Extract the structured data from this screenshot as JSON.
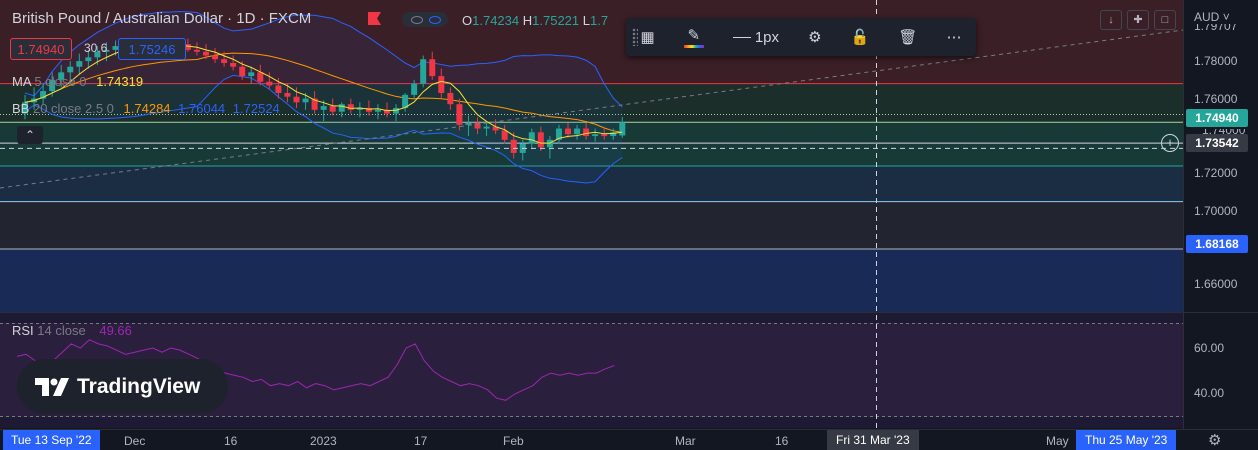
{
  "header": {
    "title": "British Pound / Australian Dollar · 1D · FXCM",
    "ohlc": [
      {
        "label": "O",
        "value": "1.74234"
      },
      {
        "label": "H",
        "value": "1.75221"
      },
      {
        "label": "L",
        "value": "1.7"
      }
    ]
  },
  "trade": {
    "sell_price": "1.74940",
    "spread": "30.6",
    "buy_price": "1.75246"
  },
  "indicators": {
    "ma": {
      "name": "MA",
      "params": "5 close 0",
      "value": "1.74319"
    },
    "bb": {
      "name": "BB",
      "params": "20 close 2.5 0",
      "basis": "1.74284",
      "upper": "1.76044",
      "lower": "1.72524"
    },
    "rsi": {
      "name": "RSI",
      "params": "14 close",
      "value": "49.66"
    }
  },
  "toolbar": {
    "width_label": "1px"
  },
  "price_axis": {
    "currency": "AUD",
    "top_partial": "1.79707",
    "ticks": [
      "1.78000",
      "1.76000",
      "1.72000",
      "1.70000",
      "1.66000"
    ],
    "current_price": "1.74940",
    "crosshair_price": "1.73542",
    "level_price": "1.68168",
    "hidden_tick": "1.74000"
  },
  "rsi_axis": {
    "ticks": [
      "60.00",
      "40.00"
    ]
  },
  "time_axis": {
    "start_label": "Tue 13 Sep '22",
    "labels": [
      "Dec",
      "16",
      "2023",
      "17",
      "Feb",
      "Mar",
      "16",
      "May"
    ],
    "crosshair_label": "Fri 31 Mar '23",
    "end_label": "Thu 25 May '23"
  },
  "branding": {
    "logo_text": "TradingView"
  },
  "colors": {
    "background": "#131722",
    "up": "#26a69a",
    "down": "#f23645",
    "ma": "#f5e532",
    "bb_basis": "#ff9800",
    "bb_bands": "#2962ff",
    "rsi": "#9c27b0",
    "current_tag": "#26a69a",
    "level_tag": "#2962ff"
  },
  "chart_data": {
    "type": "candlestick",
    "ohlc": [
      [
        1.754,
        1.764,
        1.751,
        1.76
      ],
      [
        1.76,
        1.768,
        1.756,
        1.762
      ],
      [
        1.762,
        1.77,
        1.759,
        1.766
      ],
      [
        1.766,
        1.776,
        1.763,
        1.772
      ],
      [
        1.772,
        1.78,
        1.768,
        1.776
      ],
      [
        1.776,
        1.782,
        1.77,
        1.779
      ],
      [
        1.779,
        1.786,
        1.775,
        1.782
      ],
      [
        1.782,
        1.788,
        1.778,
        1.784
      ],
      [
        1.784,
        1.79,
        1.78,
        1.787
      ],
      [
        1.787,
        1.792,
        1.782,
        1.788
      ],
      [
        1.788,
        1.793,
        1.785,
        1.79
      ],
      [
        1.79,
        1.794,
        1.786,
        1.791
      ],
      [
        1.791,
        1.794,
        1.788,
        1.792
      ],
      [
        1.792,
        1.794,
        1.789,
        1.791
      ],
      [
        1.791,
        1.794,
        1.788,
        1.79
      ],
      [
        1.79,
        1.794,
        1.787,
        1.792
      ],
      [
        1.792,
        1.794,
        1.788,
        1.789
      ],
      [
        1.789,
        1.793,
        1.786,
        1.791
      ],
      [
        1.791,
        1.794,
        1.787,
        1.788
      ],
      [
        1.788,
        1.792,
        1.785,
        1.787
      ],
      [
        1.787,
        1.791,
        1.783,
        1.785
      ],
      [
        1.785,
        1.789,
        1.781,
        1.783
      ],
      [
        1.783,
        1.787,
        1.779,
        1.781
      ],
      [
        1.781,
        1.785,
        1.777,
        1.779
      ],
      [
        1.779,
        1.782,
        1.772,
        1.774
      ],
      [
        1.774,
        1.779,
        1.77,
        1.776
      ],
      [
        1.776,
        1.78,
        1.769,
        1.771
      ],
      [
        1.771,
        1.776,
        1.767,
        1.769
      ],
      [
        1.769,
        1.773,
        1.762,
        1.765
      ],
      [
        1.765,
        1.77,
        1.76,
        1.763
      ],
      [
        1.763,
        1.768,
        1.757,
        1.76
      ],
      [
        1.76,
        1.765,
        1.756,
        1.762
      ],
      [
        1.762,
        1.766,
        1.754,
        1.756
      ],
      [
        1.756,
        1.761,
        1.75,
        1.758
      ],
      [
        1.758,
        1.762,
        1.753,
        1.755
      ],
      [
        1.755,
        1.76,
        1.752,
        1.759
      ],
      [
        1.759,
        1.762,
        1.754,
        1.756
      ],
      [
        1.756,
        1.76,
        1.752,
        1.757
      ],
      [
        1.757,
        1.761,
        1.753,
        1.755
      ],
      [
        1.755,
        1.759,
        1.751,
        1.756
      ],
      [
        1.756,
        1.76,
        1.752,
        1.754
      ],
      [
        1.754,
        1.759,
        1.75,
        1.757
      ],
      [
        1.757,
        1.765,
        1.755,
        1.764
      ],
      [
        1.764,
        1.772,
        1.762,
        1.77
      ],
      [
        1.77,
        1.785,
        1.768,
        1.783
      ],
      [
        1.783,
        1.787,
        1.772,
        1.774
      ],
      [
        1.774,
        1.778,
        1.762,
        1.765
      ],
      [
        1.765,
        1.768,
        1.756,
        1.759
      ],
      [
        1.759,
        1.762,
        1.745,
        1.748
      ],
      [
        1.748,
        1.753,
        1.742,
        1.749
      ],
      [
        1.749,
        1.752,
        1.743,
        1.746
      ],
      [
        1.746,
        1.75,
        1.742,
        1.747
      ],
      [
        1.747,
        1.751,
        1.743,
        1.745
      ],
      [
        1.745,
        1.748,
        1.738,
        1.74
      ],
      [
        1.74,
        1.744,
        1.73,
        1.733
      ],
      [
        1.733,
        1.74,
        1.729,
        1.738
      ],
      [
        1.738,
        1.746,
        1.735,
        1.744
      ],
      [
        1.744,
        1.747,
        1.734,
        1.736
      ],
      [
        1.736,
        1.742,
        1.73,
        1.74
      ],
      [
        1.74,
        1.748,
        1.738,
        1.746
      ],
      [
        1.746,
        1.749,
        1.741,
        1.743
      ],
      [
        1.743,
        1.748,
        1.74,
        1.746
      ],
      [
        1.746,
        1.749,
        1.74,
        1.742
      ],
      [
        1.742,
        1.746,
        1.739,
        1.743
      ],
      [
        1.743,
        1.747,
        1.74,
        1.742
      ],
      [
        1.742,
        1.746,
        1.74,
        1.744
      ],
      [
        1.7423,
        1.7522,
        1.741,
        1.7494
      ]
    ],
    "rsi": [
      54,
      55,
      52,
      50,
      52,
      56,
      60,
      58,
      62,
      60,
      59,
      57,
      55,
      56,
      57,
      58,
      56,
      58,
      57,
      55,
      53,
      50,
      48,
      46,
      45,
      44,
      42,
      43,
      40,
      41,
      40,
      42,
      39,
      41,
      40,
      38,
      39,
      40,
      41,
      40,
      42,
      44,
      50,
      58,
      60,
      52,
      47,
      44,
      42,
      40,
      41,
      40,
      38,
      34,
      33,
      36,
      38,
      40,
      44,
      46,
      45,
      46,
      45,
      46,
      46,
      48,
      49.66
    ],
    "ma_last": 1.74319,
    "bb_last": {
      "basis": 1.74284,
      "upper": 1.76044,
      "lower": 1.72524
    },
    "y_range": [
      1.64,
      1.8
    ],
    "rsi_range": [
      25,
      70
    ]
  }
}
